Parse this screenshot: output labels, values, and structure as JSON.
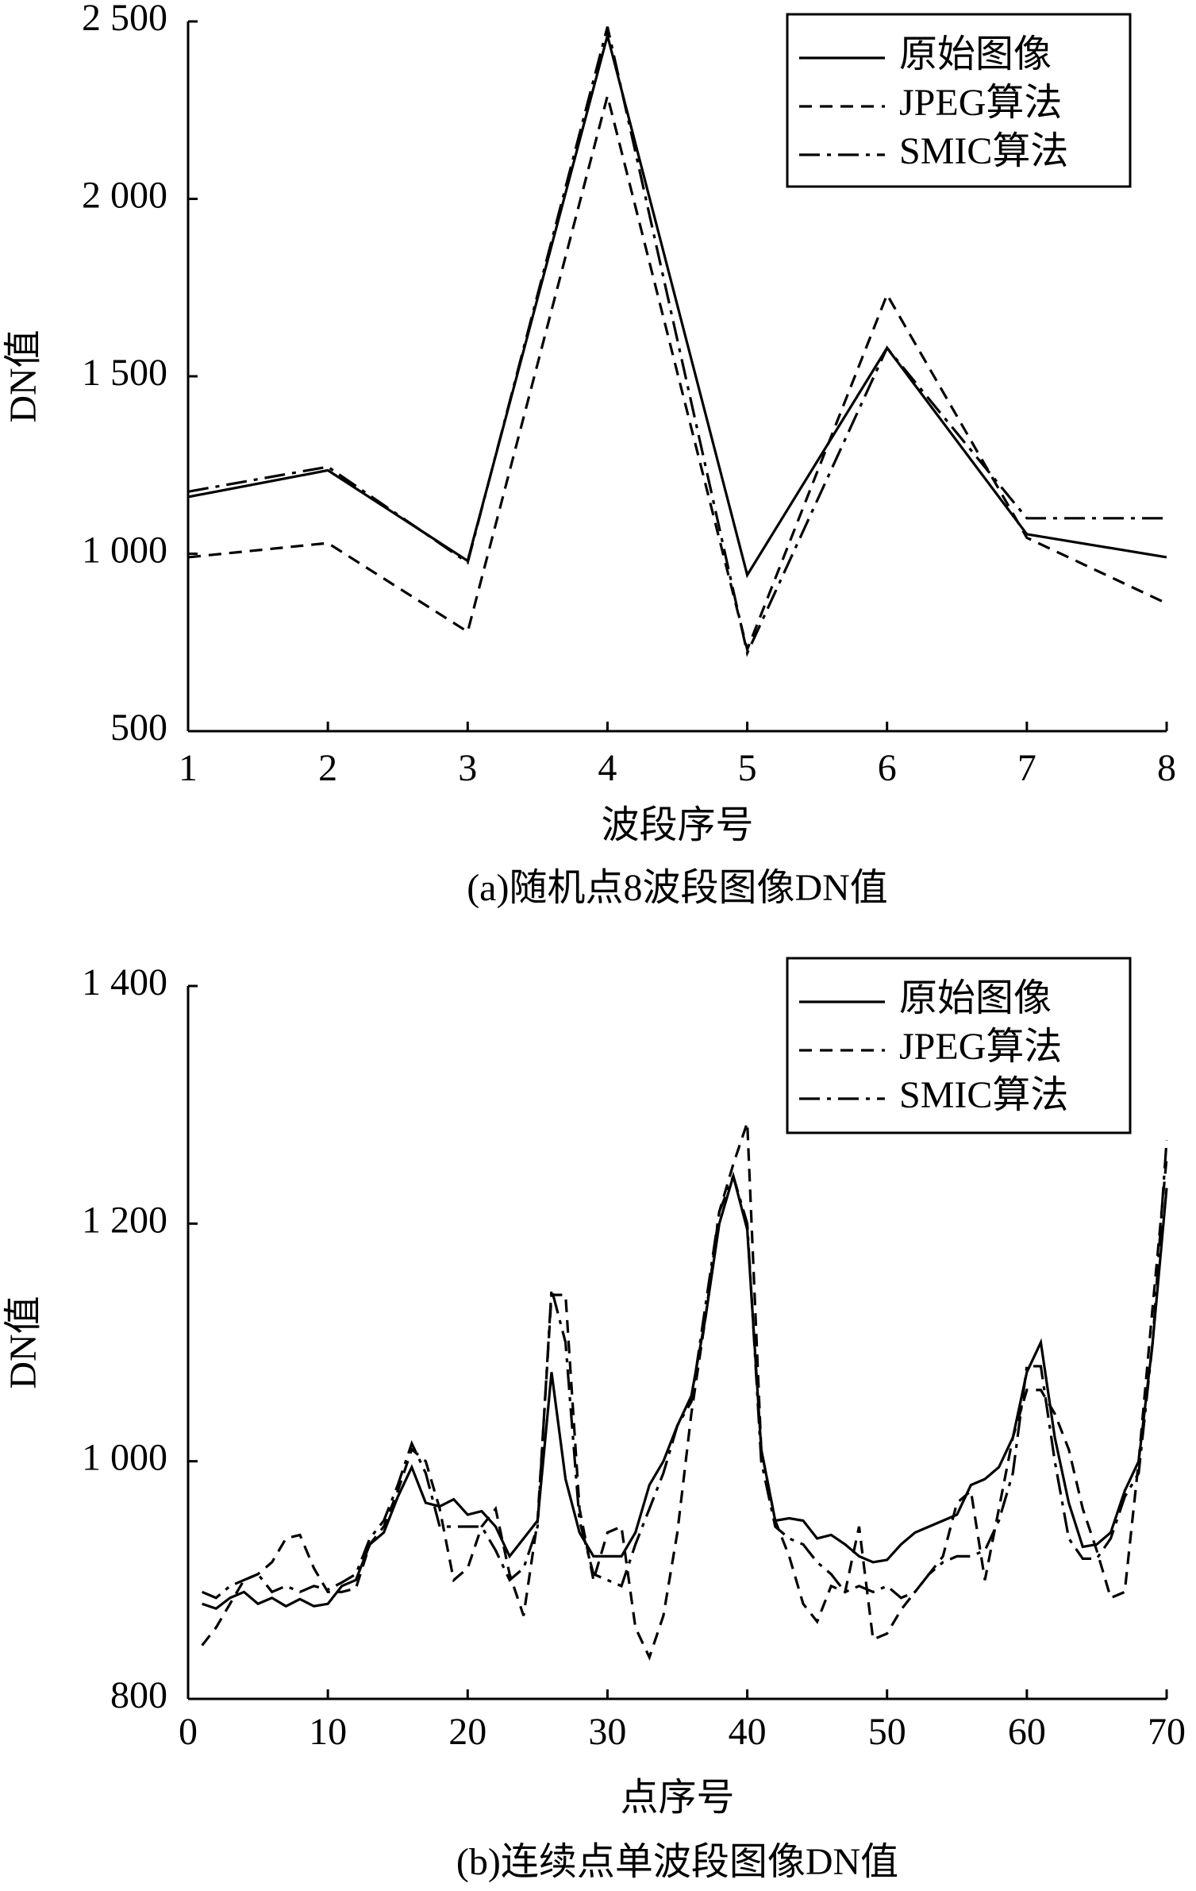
{
  "chart_data": [
    {
      "type": "line",
      "caption": "(a)随机点8波段图像DN值",
      "xlabel": "波段序号",
      "ylabel": "DN值",
      "x": [
        1,
        2,
        3,
        4,
        5,
        6,
        7,
        8
      ],
      "xlim": [
        1,
        8
      ],
      "xticks": [
        1,
        2,
        3,
        4,
        5,
        6,
        7,
        8
      ],
      "ylim": [
        500,
        2500
      ],
      "yticks": [
        500,
        {
          "value": 1000,
          "label": "1 000"
        },
        {
          "value": 1500,
          "label": "1 500"
        },
        {
          "value": 2000,
          "label": "2 000"
        },
        {
          "value": 2500,
          "label": "2 500"
        }
      ],
      "legend": "upper right",
      "series": [
        {
          "name": "原始图像",
          "color": "#000000",
          "linestyle": "solid",
          "values": [
            1160,
            1235,
            980,
            2460,
            940,
            1580,
            1055,
            990
          ]
        },
        {
          "name": "JPEG算法",
          "color": "#000000",
          "linestyle": "dashed",
          "values": [
            990,
            1030,
            780,
            2290,
            730,
            1730,
            1045,
            860
          ]
        },
        {
          "name": "SMIC算法",
          "color": "#000000",
          "linestyle": "dashdot",
          "values": [
            1175,
            1245,
            975,
            2485,
            720,
            1580,
            1100,
            1100
          ]
        }
      ]
    },
    {
      "type": "line",
      "caption": "(b)连续点单波段图像DN值",
      "xlabel": "点序号",
      "ylabel": "DN值",
      "x": [
        1,
        2,
        3,
        4,
        5,
        6,
        7,
        8,
        9,
        10,
        11,
        12,
        13,
        14,
        15,
        16,
        17,
        18,
        19,
        20,
        21,
        22,
        23,
        24,
        25,
        26,
        27,
        28,
        29,
        30,
        31,
        32,
        33,
        34,
        35,
        36,
        37,
        38,
        39,
        40,
        41,
        42,
        43,
        44,
        45,
        46,
        47,
        48,
        49,
        50,
        51,
        52,
        53,
        54,
        55,
        56,
        57,
        58,
        59,
        60,
        61,
        62,
        63,
        64,
        65,
        66,
        67,
        68,
        69,
        70
      ],
      "xlim": [
        0,
        70
      ],
      "xticks": [
        0,
        10,
        20,
        30,
        40,
        50,
        60,
        70
      ],
      "ylim": [
        800,
        1400
      ],
      "yticks": [
        800,
        {
          "value": 1000,
          "label": "1 000"
        },
        {
          "value": 1200,
          "label": "1 200"
        },
        {
          "value": 1400,
          "label": "1 400"
        }
      ],
      "legend": "upper right",
      "series": [
        {
          "name": "原始图像",
          "color": "#000000",
          "linestyle": "solid",
          "values": [
            880,
            876,
            885,
            890,
            880,
            885,
            878,
            884,
            878,
            880,
            895,
            900,
            930,
            940,
            970,
            995,
            965,
            962,
            968,
            955,
            958,
            945,
            920,
            935,
            950,
            1075,
            985,
            940,
            920,
            920,
            920,
            940,
            980,
            1000,
            1030,
            1055,
            1120,
            1200,
            1240,
            1195,
            1010,
            950,
            952,
            950,
            935,
            938,
            930,
            920,
            915,
            917,
            930,
            940,
            945,
            950,
            955,
            980,
            985,
            995,
            1020,
            1075,
            1100,
            1020,
            965,
            928,
            930,
            940,
            975,
            1000,
            1100,
            1230
          ]
        },
        {
          "name": "JPEG算法",
          "color": "#000000",
          "linestyle": "dashed",
          "values": [
            845,
            860,
            880,
            900,
            905,
            915,
            935,
            938,
            910,
            890,
            890,
            893,
            930,
            945,
            975,
            1010,
            1000,
            960,
            900,
            910,
            945,
            960,
            905,
            870,
            950,
            1140,
            1140,
            960,
            900,
            940,
            945,
            860,
            835,
            870,
            940,
            1040,
            1120,
            1210,
            1250,
            1285,
            1010,
            950,
            920,
            880,
            865,
            895,
            890,
            945,
            850,
            855,
            875,
            890,
            905,
            920,
            965,
            975,
            900,
            960,
            1020,
            1060,
            1060,
            1040,
            1010,
            960,
            925,
            885,
            890,
            1000,
            1130,
            1255
          ]
        },
        {
          "name": "SMIC算法",
          "color": "#000000",
          "linestyle": "dashdot",
          "values": [
            890,
            885,
            895,
            900,
            905,
            890,
            895,
            890,
            895,
            892,
            898,
            905,
            935,
            950,
            980,
            1015,
            990,
            945,
            945,
            945,
            945,
            925,
            900,
            910,
            945,
            1145,
            1100,
            950,
            905,
            900,
            895,
            930,
            960,
            990,
            1030,
            1050,
            1130,
            1210,
            1240,
            1200,
            1000,
            945,
            935,
            930,
            915,
            905,
            890,
            895,
            890,
            895,
            885,
            890,
            905,
            915,
            920,
            920,
            925,
            950,
            990,
            1080,
            1080,
            1000,
            935,
            918,
            918,
            935,
            970,
            990,
            1100,
            1270
          ]
        }
      ]
    }
  ]
}
